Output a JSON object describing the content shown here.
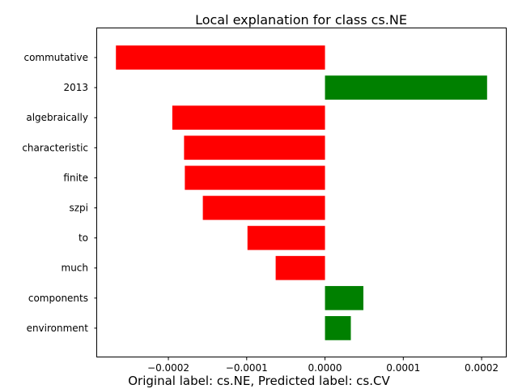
{
  "chart_data": {
    "type": "bar",
    "orientation": "horizontal",
    "title": "Local explanation for class cs.NE",
    "xlabel": "",
    "ylabel": "",
    "categories": [
      "commutative",
      "2013",
      "algebraically",
      "characteristic",
      "finite",
      "szpi",
      "to",
      "much",
      "components",
      "environment"
    ],
    "values": [
      -0.000267,
      0.000207,
      -0.000195,
      -0.00018,
      -0.000179,
      -0.000156,
      -9.9e-05,
      -6.3e-05,
      4.9e-05,
      3.3e-05
    ],
    "xlim": [
      -0.000291,
      0.000232
    ],
    "xticks": [
      -0.0002,
      -0.0001,
      0.0,
      0.0001,
      0.0002
    ],
    "xtick_labels": [
      "−0.0002",
      "−0.0001",
      "0.0000",
      "0.0001",
      "0.0002"
    ],
    "grid": false,
    "colors": {
      "positive": "#008000",
      "negative": "#ff0000"
    }
  },
  "footer_text": "Original label: cs.NE, Predicted label: cs.CV"
}
